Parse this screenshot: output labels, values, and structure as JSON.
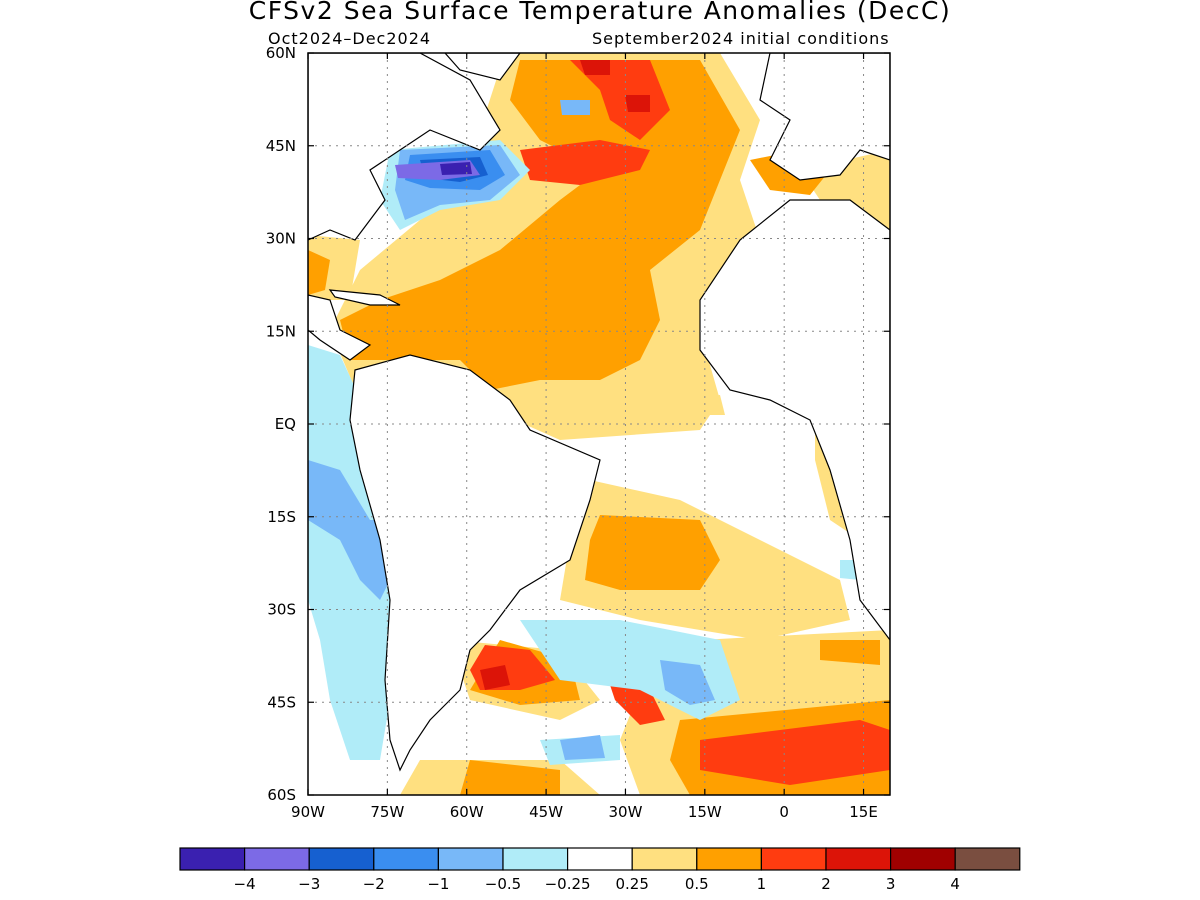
{
  "title": "CFSv2 Sea Surface Temperature Anomalies (DecC)",
  "subtitle_left": "Oct2024–Dec2024",
  "subtitle_right": "September2024 initial conditions",
  "map": {
    "lon_range": [
      -90,
      20
    ],
    "lat_range": [
      -60,
      60
    ],
    "lat_ticks": [
      {
        "value": 60,
        "label": "60N"
      },
      {
        "value": 45,
        "label": "45N"
      },
      {
        "value": 30,
        "label": "30N"
      },
      {
        "value": 15,
        "label": "15N"
      },
      {
        "value": 0,
        "label": "EQ"
      },
      {
        "value": -15,
        "label": "15S"
      },
      {
        "value": -30,
        "label": "30S"
      },
      {
        "value": -45,
        "label": "45S"
      },
      {
        "value": -60,
        "label": "60S"
      }
    ],
    "lon_ticks": [
      {
        "value": -90,
        "label": "90W"
      },
      {
        "value": -75,
        "label": "75W"
      },
      {
        "value": -60,
        "label": "60W"
      },
      {
        "value": -45,
        "label": "45W"
      },
      {
        "value": -30,
        "label": "30W"
      },
      {
        "value": -15,
        "label": "15W"
      },
      {
        "value": 0,
        "label": "0"
      },
      {
        "value": 15,
        "label": "15E"
      }
    ],
    "grid": "dotted"
  },
  "colorbar": {
    "colors": [
      "#3a20b0",
      "#7c6ae6",
      "#1660d0",
      "#3a8ef0",
      "#78b8f8",
      "#b0ecf8",
      "#ffffff",
      "#ffe080",
      "#ffa000",
      "#ff3c10",
      "#dc1408",
      "#a00000",
      "#7a4e40"
    ],
    "labels": [
      "−4",
      "−3",
      "−2",
      "−1",
      "−0.5",
      "−0.25",
      "0.25",
      "0.5",
      "1",
      "2",
      "3",
      "4"
    ]
  }
}
